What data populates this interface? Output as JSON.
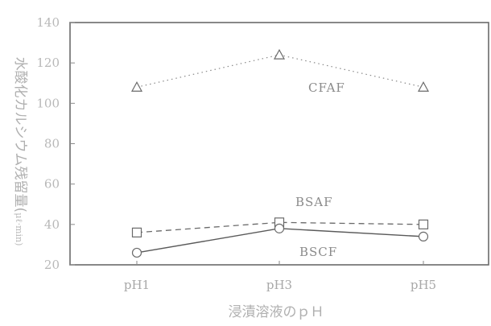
{
  "chart_data": {
    "type": "line",
    "categories": [
      "pH1",
      "pH3",
      "pH5"
    ],
    "xlabel": "浸漬溶液のｐＨ",
    "ylabel": "水酸化カルシウム残留量(",
    "ylabel_unit": "μℓ·min)",
    "ylim": [
      20,
      140
    ],
    "yticks": [
      20,
      40,
      60,
      80,
      100,
      120,
      140
    ],
    "grid": false,
    "series": [
      {
        "name": "CFAF",
        "values": [
          108,
          124,
          108
        ],
        "marker": "triangle",
        "line_style": "dotted"
      },
      {
        "name": "BSAF",
        "values": [
          36,
          41,
          40
        ],
        "marker": "square",
        "line_style": "dashed"
      },
      {
        "name": "BSCF",
        "values": [
          26,
          38,
          34
        ],
        "marker": "circle",
        "line_style": "solid"
      }
    ]
  }
}
